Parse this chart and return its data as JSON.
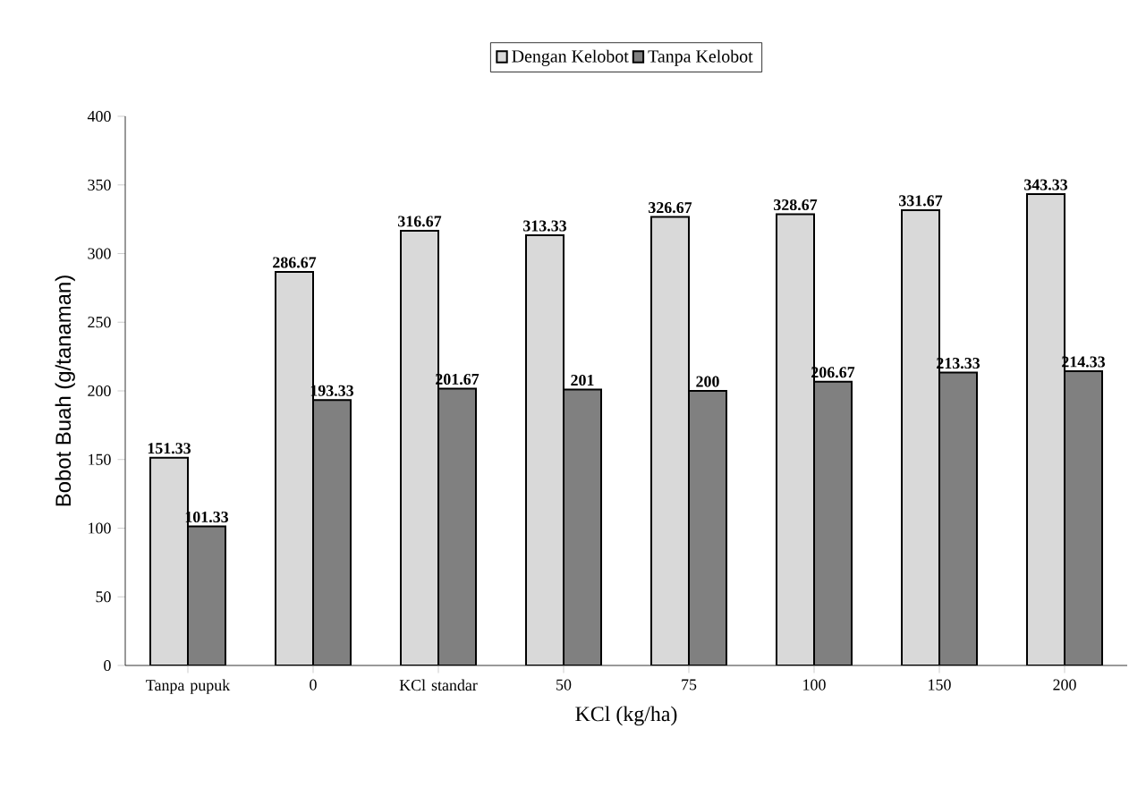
{
  "chart_data": {
    "type": "bar",
    "xlabel": "KCl (kg/ha)",
    "ylabel": "Bobot Buah (g/tanaman)",
    "categories": [
      "Tanpa pupuk",
      "0",
      "KCl standar",
      "50",
      "75",
      "100",
      "150",
      "200"
    ],
    "series": [
      {
        "name": "Dengan Kelobot",
        "color": "#d9d9d9",
        "values": [
          151.33,
          286.67,
          316.67,
          313.33,
          326.67,
          328.67,
          331.67,
          343.33
        ]
      },
      {
        "name": "Tanpa Kelobot",
        "color": "#808080",
        "values": [
          101.33,
          193.33,
          201.67,
          201,
          200,
          206.67,
          213.33,
          214.33
        ]
      }
    ],
    "ylim": [
      0,
      400
    ],
    "yticks": [
      0,
      50,
      100,
      150,
      200,
      250,
      300,
      350,
      400
    ],
    "data_labels": true,
    "legend": "top",
    "grid": false
  }
}
